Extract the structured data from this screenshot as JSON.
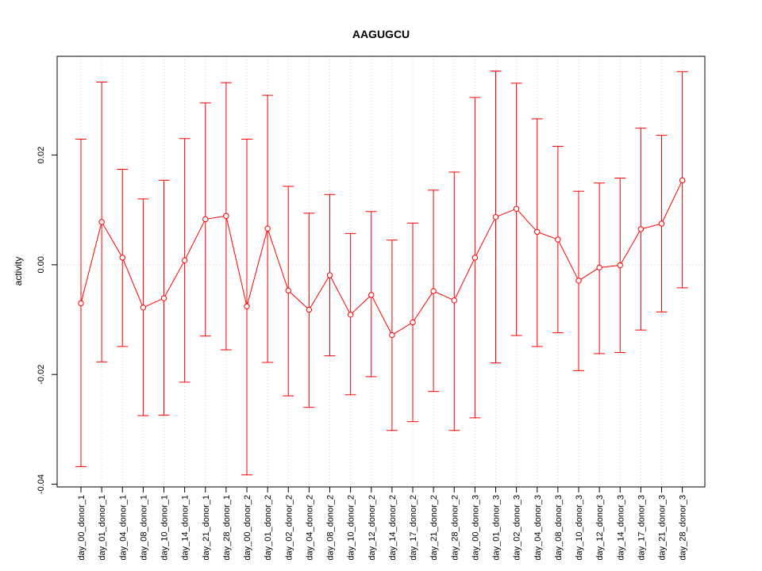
{
  "chart_data": {
    "type": "line",
    "title": "AAGUGCU",
    "xlabel": "",
    "ylabel": "activity",
    "ylim": [
      -0.0405,
      0.038
    ],
    "y_ticks": [
      {
        "value": -0.04,
        "label": "-0.04"
      },
      {
        "value": -0.02,
        "label": "-0.02"
      },
      {
        "value": 0.0,
        "label": "0.00"
      },
      {
        "value": 0.02,
        "label": "0.02"
      }
    ],
    "grid": true,
    "categories": [
      "day_00_donor_1",
      "day_01_donor_1",
      "day_04_donor_1",
      "day_08_donor_1",
      "day_10_donor_1",
      "day_14_donor_1",
      "day_21_donor_1",
      "day_28_donor_1",
      "day_00_donor_2",
      "day_01_donor_2",
      "day_02_donor_2",
      "day_04_donor_2",
      "day_08_donor_2",
      "day_10_donor_2",
      "day_12_donor_2",
      "day_14_donor_2",
      "day_17_donor_2",
      "day_21_donor_2",
      "day_28_donor_2",
      "day_00_donor_3",
      "day_01_donor_3",
      "day_02_donor_3",
      "day_04_donor_3",
      "day_08_donor_3",
      "day_10_donor_3",
      "day_12_donor_3",
      "day_14_donor_3",
      "day_17_donor_3",
      "day_21_donor_3",
      "day_28_donor_3"
    ],
    "series": [
      {
        "color": "#ff0000",
        "values": [
          -0.007,
          0.0078,
          0.0013,
          -0.0078,
          -0.0061,
          0.0008,
          0.0083,
          0.0089,
          -0.0076,
          0.0066,
          -0.0047,
          -0.0082,
          -0.0019,
          -0.0091,
          -0.0055,
          -0.0128,
          -0.0105,
          -0.0048,
          -0.0065,
          0.0013,
          0.0087,
          0.0102,
          0.006,
          0.0046,
          -0.0029,
          -0.0005,
          -0.0001,
          0.0065,
          0.0075,
          0.0154
        ],
        "lower": [
          -0.0368,
          -0.0177,
          -0.0149,
          -0.0275,
          -0.0274,
          -0.0214,
          -0.013,
          -0.0155,
          -0.0383,
          -0.0178,
          -0.0239,
          -0.026,
          -0.0166,
          -0.0237,
          -0.0204,
          -0.0302,
          -0.0286,
          -0.0231,
          -0.0302,
          -0.0279,
          -0.0179,
          -0.0129,
          -0.0149,
          -0.0124,
          -0.0193,
          -0.0162,
          -0.016,
          -0.0119,
          -0.0086,
          -0.0042
        ],
        "upper": [
          0.0229,
          0.0333,
          0.0174,
          0.012,
          0.0154,
          0.023,
          0.0295,
          0.0332,
          0.0229,
          0.0309,
          0.0143,
          0.0094,
          0.0128,
          0.0057,
          0.0097,
          0.0045,
          0.0076,
          0.0136,
          0.0169,
          0.0305,
          0.0353,
          0.0331,
          0.0266,
          0.0216,
          0.0134,
          0.0149,
          0.0158,
          0.0249,
          0.0236,
          0.0352
        ]
      }
    ]
  }
}
